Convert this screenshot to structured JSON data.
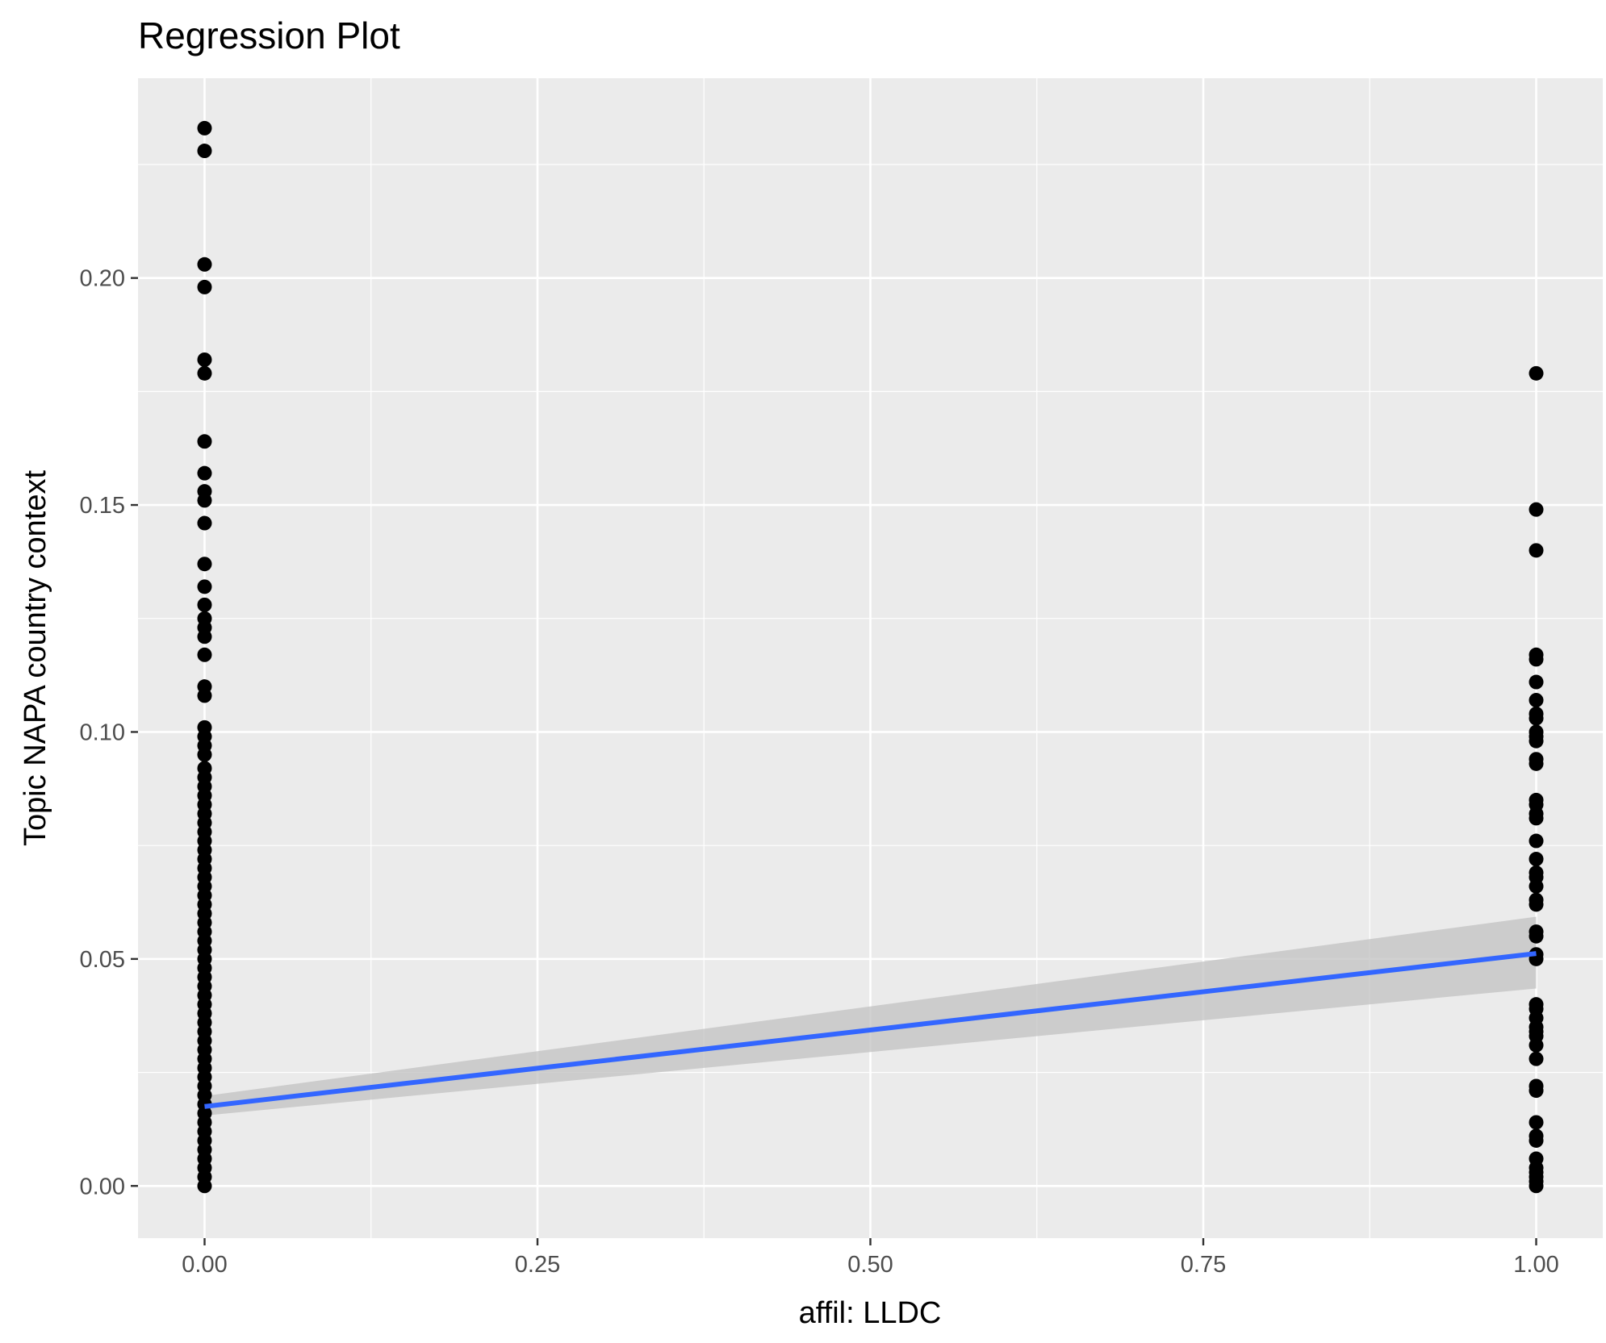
{
  "chart_data": {
    "type": "scatter",
    "title": "Regression Plot",
    "xlabel": "affil: LLDC",
    "ylabel": "Topic NAPA country context",
    "xlim": [
      -0.05,
      1.05
    ],
    "ylim": [
      -0.0115,
      0.244
    ],
    "x_ticks": [
      0.0,
      0.25,
      0.5,
      0.75,
      1.0
    ],
    "x_tick_labels": [
      "0.00",
      "0.25",
      "0.50",
      "0.75",
      "1.00"
    ],
    "y_ticks": [
      0.0,
      0.05,
      0.1,
      0.15,
      0.2
    ],
    "y_tick_labels": [
      "0.00",
      "0.05",
      "0.10",
      "0.15",
      "0.20"
    ],
    "grid": true,
    "series": [
      {
        "type": "points",
        "x": 0,
        "y": [
          0.233,
          0.228,
          0.203,
          0.198,
          0.182,
          0.179,
          0.164,
          0.157,
          0.153,
          0.151,
          0.146,
          0.137,
          0.132,
          0.128,
          0.125,
          0.123,
          0.121,
          0.117,
          0.11,
          0.108,
          0.101,
          0.099,
          0.097,
          0.095,
          0.092,
          0.09,
          0.088,
          0.086,
          0.084,
          0.082,
          0.08,
          0.078,
          0.076,
          0.074,
          0.072,
          0.07,
          0.068,
          0.066,
          0.064,
          0.062,
          0.06,
          0.058,
          0.056,
          0.054,
          0.052,
          0.05,
          0.048,
          0.046,
          0.044,
          0.042,
          0.04,
          0.038,
          0.036,
          0.034,
          0.032,
          0.03,
          0.028,
          0.026,
          0.024,
          0.022,
          0.02,
          0.018,
          0.016,
          0.014,
          0.012,
          0.01,
          0.008,
          0.006,
          0.004,
          0.002,
          0.0
        ]
      },
      {
        "type": "points",
        "x": 1,
        "y": [
          0.179,
          0.149,
          0.14,
          0.117,
          0.116,
          0.111,
          0.107,
          0.104,
          0.103,
          0.1,
          0.099,
          0.098,
          0.094,
          0.093,
          0.085,
          0.084,
          0.082,
          0.081,
          0.076,
          0.072,
          0.069,
          0.068,
          0.066,
          0.063,
          0.062,
          0.056,
          0.055,
          0.051,
          0.05,
          0.04,
          0.039,
          0.037,
          0.035,
          0.034,
          0.033,
          0.031,
          0.028,
          0.022,
          0.021,
          0.014,
          0.011,
          0.01,
          0.006,
          0.004,
          0.003,
          0.002,
          0.001,
          0.0
        ]
      }
    ],
    "regression": {
      "x": [
        0,
        1
      ],
      "y": [
        0.0175,
        0.0512
      ],
      "ci_lower": [
        0.0155,
        0.0435
      ],
      "ci_upper": [
        0.0198,
        0.0593
      ]
    },
    "colors": {
      "panel": "#ebebeb",
      "grid": "#ffffff",
      "points": "#000000",
      "line": "#3366ff",
      "band": "#c2c2c2"
    }
  }
}
